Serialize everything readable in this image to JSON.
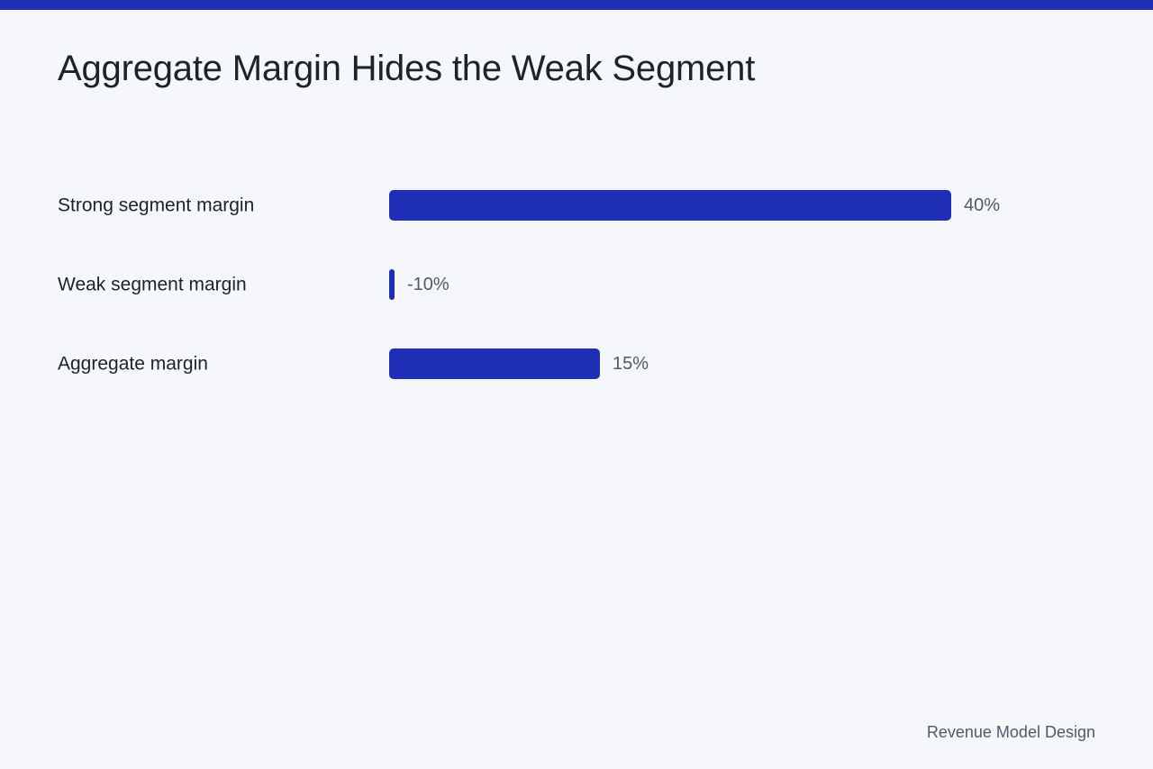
{
  "page": {
    "title": "Aggregate Margin Hides the Weak Segment",
    "footer": "Revenue Model Design"
  },
  "colors": {
    "accent": "#1e2fb5",
    "background": "#f5f7fa",
    "text": "#1b2528",
    "muted": "#4f5b66"
  },
  "chart_data": {
    "type": "bar",
    "orientation": "horizontal",
    "categories": [
      "Strong segment margin",
      "Weak segment margin",
      "Aggregate margin"
    ],
    "values": [
      40,
      -10,
      15
    ],
    "value_labels": [
      "40%",
      "-10%",
      "15%"
    ],
    "title": "Aggregate Margin Hides the Weak Segment",
    "xlabel": "",
    "ylabel": "",
    "xlim": [
      0,
      40
    ],
    "grid": false,
    "legend": "none",
    "bar_color": "#1e2fb5"
  }
}
